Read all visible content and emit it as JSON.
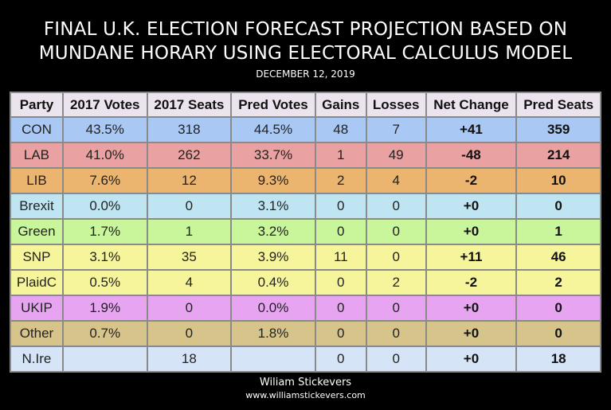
{
  "title_line1": "FINAL U.K. ELECTION FORECAST PROJECTION BASED ON",
  "title_line2": "MUNDANE HORARY USING ELECTORAL CALCULUS MODEL",
  "date": "DECEMBER 12, 2019",
  "author": "Wiliam Stickevers",
  "website": "www.williamstickevers.com",
  "chart_data": {
    "type": "table",
    "columns": [
      "Party",
      "2017 Votes",
      "2017 Seats",
      "Pred Votes",
      "Gains",
      "Losses",
      "Net Change",
      "Pred Seats"
    ],
    "header_color": "#ebe3ee",
    "rows": [
      {
        "color": "#a9c8f4",
        "cells": [
          "CON",
          "43.5%",
          "318",
          "44.5%",
          "48",
          "7",
          "+41",
          "359"
        ]
      },
      {
        "color": "#e9a1a1",
        "cells": [
          "LAB",
          "41.0%",
          "262",
          "33.7%",
          "1",
          "49",
          "-48",
          "214"
        ]
      },
      {
        "color": "#ebb46f",
        "cells": [
          "LIB",
          "7.6%",
          "12",
          "9.3%",
          "2",
          "4",
          "-2",
          "10"
        ]
      },
      {
        "color": "#bfe5f2",
        "cells": [
          "Brexit",
          "0.0%",
          "0",
          "3.1%",
          "0",
          "0",
          "+0",
          "0"
        ]
      },
      {
        "color": "#c9f59b",
        "cells": [
          "Green",
          "1.7%",
          "1",
          "3.2%",
          "0",
          "0",
          "+0",
          "1"
        ]
      },
      {
        "color": "#f7f59c",
        "cells": [
          "SNP",
          "3.1%",
          "35",
          "3.9%",
          "11",
          "0",
          "+11",
          "46"
        ]
      },
      {
        "color": "#f7f59c",
        "cells": [
          "PlaidC",
          "0.5%",
          "4",
          "0.4%",
          "0",
          "2",
          "-2",
          "2"
        ]
      },
      {
        "color": "#e6a4f1",
        "cells": [
          "UKIP",
          "1.9%",
          "0",
          "0.0%",
          "0",
          "0",
          "+0",
          "0"
        ]
      },
      {
        "color": "#d7c48b",
        "cells": [
          "Other",
          "0.7%",
          "0",
          "1.8%",
          "0",
          "0",
          "+0",
          "0"
        ]
      },
      {
        "color": "#d6e4f7",
        "cells": [
          "N.Ire",
          "",
          "18",
          "",
          "0",
          "0",
          "+0",
          "18"
        ]
      }
    ]
  }
}
